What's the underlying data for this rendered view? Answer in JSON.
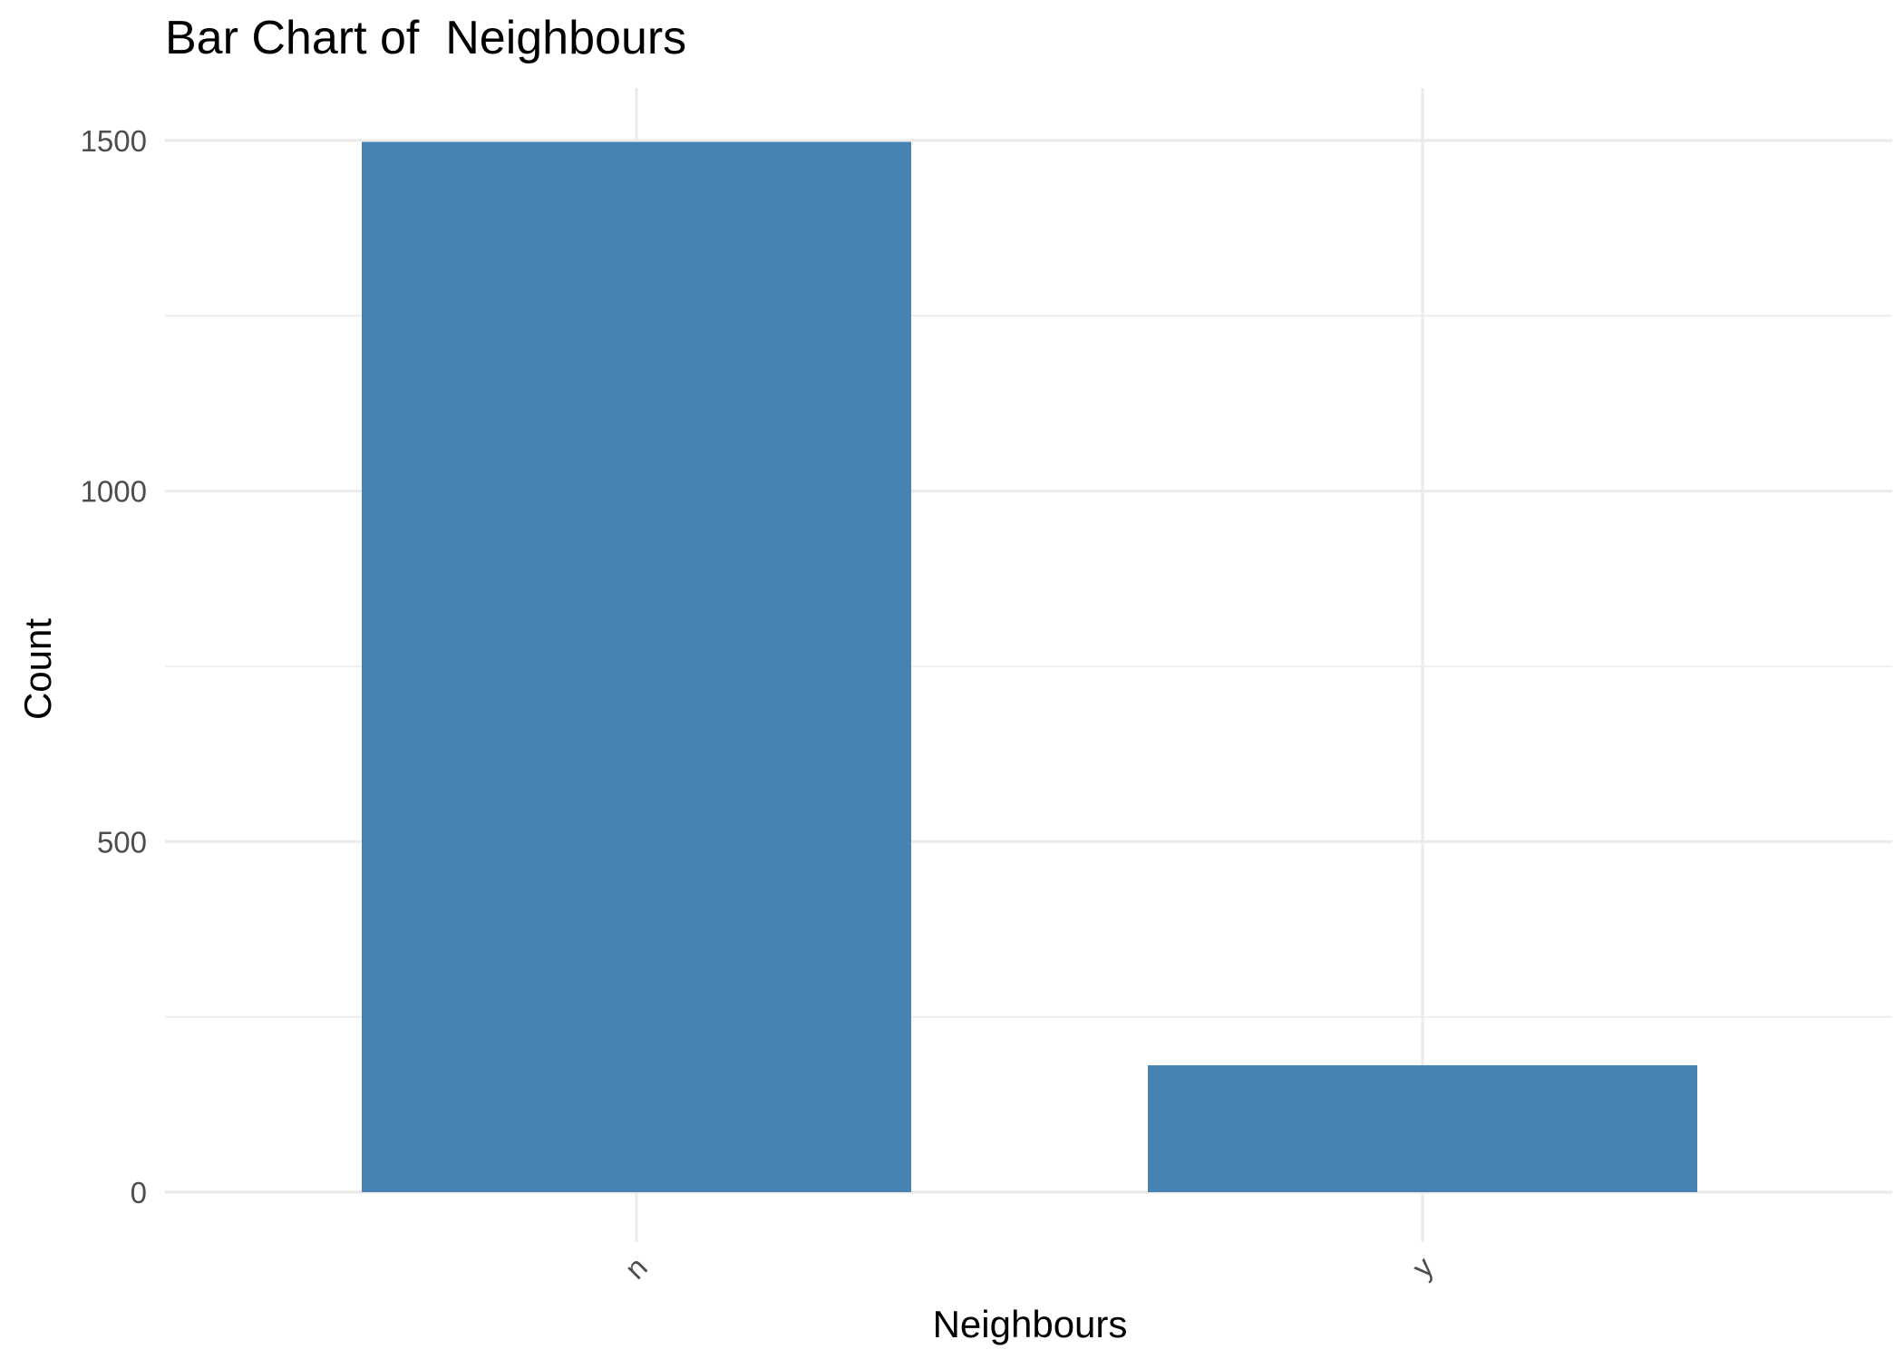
{
  "chart_data": {
    "type": "bar",
    "title": "Bar Chart of  Neighbours",
    "xlabel": "Neighbours",
    "ylabel": "Count",
    "categories": [
      "n",
      "y"
    ],
    "values": [
      1498,
      181
    ],
    "ylim": [
      0,
      1560
    ],
    "yticks": [
      0,
      500,
      1000,
      1500
    ],
    "ytick_labels": [
      "0",
      "500",
      "1000",
      "1500"
    ],
    "grid": true,
    "bar_color": "#4682b4",
    "legend": "none"
  }
}
